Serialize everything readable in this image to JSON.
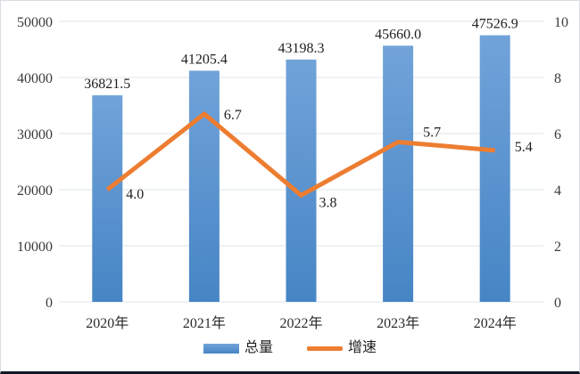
{
  "chart_data": {
    "type": "bar",
    "combo": "bar+line",
    "categories": [
      "2020年",
      "2021年",
      "2022年",
      "2023年",
      "2024年"
    ],
    "series": [
      {
        "name": "总量",
        "type": "bar",
        "axis": "left",
        "color": "#5B9BD5",
        "values": [
          36821.5,
          41205.4,
          43198.3,
          45660.0,
          47526.9
        ],
        "labels": [
          "36821.5",
          "41205.4",
          "43198.3",
          "45660.0",
          "47526.9"
        ]
      },
      {
        "name": "增速",
        "type": "line",
        "axis": "right",
        "color": "#ED7D31",
        "values": [
          4.0,
          6.7,
          3.8,
          5.7,
          5.4
        ],
        "labels": [
          "4.0",
          "6.7",
          "3.8",
          "5.7",
          "5.4"
        ]
      }
    ],
    "left_axis": {
      "min": 0,
      "max": 50000,
      "step": 10000,
      "ticks": [
        "0",
        "10000",
        "20000",
        "30000",
        "40000",
        "50000"
      ]
    },
    "right_axis": {
      "min": 0,
      "max": 10,
      "step": 2,
      "ticks": [
        "0",
        "2",
        "4",
        "6",
        "8",
        "10"
      ]
    },
    "title": "",
    "xlabel": "",
    "ylabel": "",
    "grid": true,
    "legend_position": "bottom"
  },
  "colors": {
    "bar_gradient_top": "#71A3D9",
    "bar_gradient_bottom": "#4685C5",
    "line": "#ED7D31",
    "gridline": "#dde4ee",
    "tick_text": "#3a3a3a",
    "data_label_text": "#1f1f1f",
    "card_border": "#d9dde3",
    "bottom_edge": "#101826",
    "background": "#ffffff"
  }
}
